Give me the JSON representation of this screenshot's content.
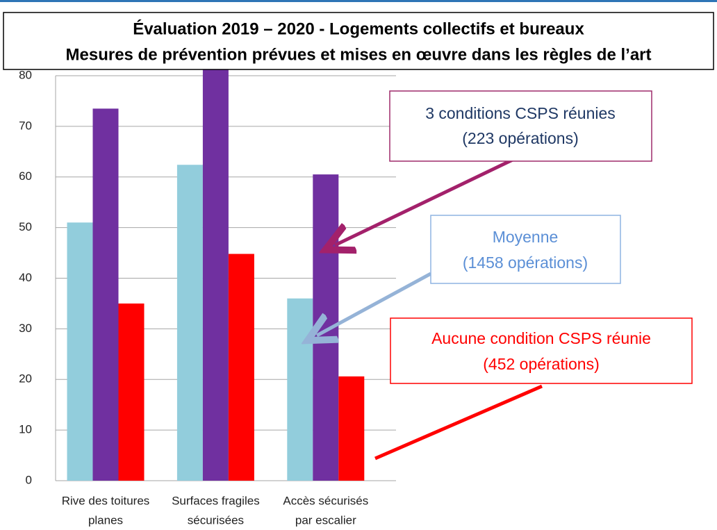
{
  "chart_data": {
    "type": "bar",
    "title": [
      "Évaluation 2019 – 2020  - Logements collectifs et bureaux",
      "Mesures de prévention prévues et mises en œuvre dans les règles de l’art"
    ],
    "categories": [
      [
        "Rive des toitures",
        "planes"
      ],
      [
        "Surfaces fragiles",
        "sécurisées"
      ],
      [
        "Accès sécurisés",
        "par escalier"
      ]
    ],
    "series": [
      {
        "name": "Moyenne",
        "label": "(1458 opérations)",
        "color": "#92cddc",
        "values": [
          51,
          62.4,
          36
        ]
      },
      {
        "name": "3 conditions CSPS réunies",
        "label": "(223 opérations)",
        "color": "#7030a0",
        "values": [
          73.5,
          82,
          60.5
        ]
      },
      {
        "name": "Aucune condition CSPS réunie",
        "label": "(452 opérations)",
        "color": "#ff0000",
        "values": [
          35,
          44.8,
          20.6
        ]
      }
    ],
    "ylim": [
      0,
      80
    ],
    "yticks": [
      0,
      10,
      20,
      30,
      40,
      50,
      60,
      70,
      80
    ],
    "grid": true
  }
}
